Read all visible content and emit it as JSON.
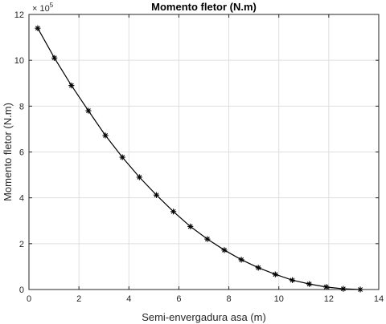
{
  "chart_data": {
    "type": "line",
    "title": "Momento fletor (N.m)",
    "xlabel": "Semi-envergadura asa (m)",
    "ylabel": "Momento fletor (N.m)",
    "y_multiplier": {
      "base": "× 10",
      "exponent": "5"
    },
    "xlim": [
      0,
      14
    ],
    "ylim": [
      0,
      12
    ],
    "x_ticks": [
      "0",
      "2",
      "4",
      "6",
      "8",
      "10",
      "12",
      "14"
    ],
    "y_ticks": [
      "0",
      "2",
      "4",
      "6",
      "8",
      "10",
      "12"
    ],
    "grid": true,
    "marker": "asterisk",
    "line_color": "#000000",
    "series": [
      {
        "x": [
          0.35,
          1.02,
          1.7,
          2.38,
          3.06,
          3.74,
          4.42,
          5.1,
          5.78,
          6.46,
          7.14,
          7.82,
          8.5,
          9.18,
          9.86,
          10.54,
          11.22,
          11.9,
          12.58,
          13.26
        ],
        "values": [
          11.4,
          10.1,
          8.9,
          7.8,
          6.72,
          5.77,
          4.9,
          4.12,
          3.4,
          2.75,
          2.2,
          1.72,
          1.3,
          0.95,
          0.66,
          0.41,
          0.24,
          0.11,
          0.03,
          0.0
        ]
      }
    ]
  }
}
